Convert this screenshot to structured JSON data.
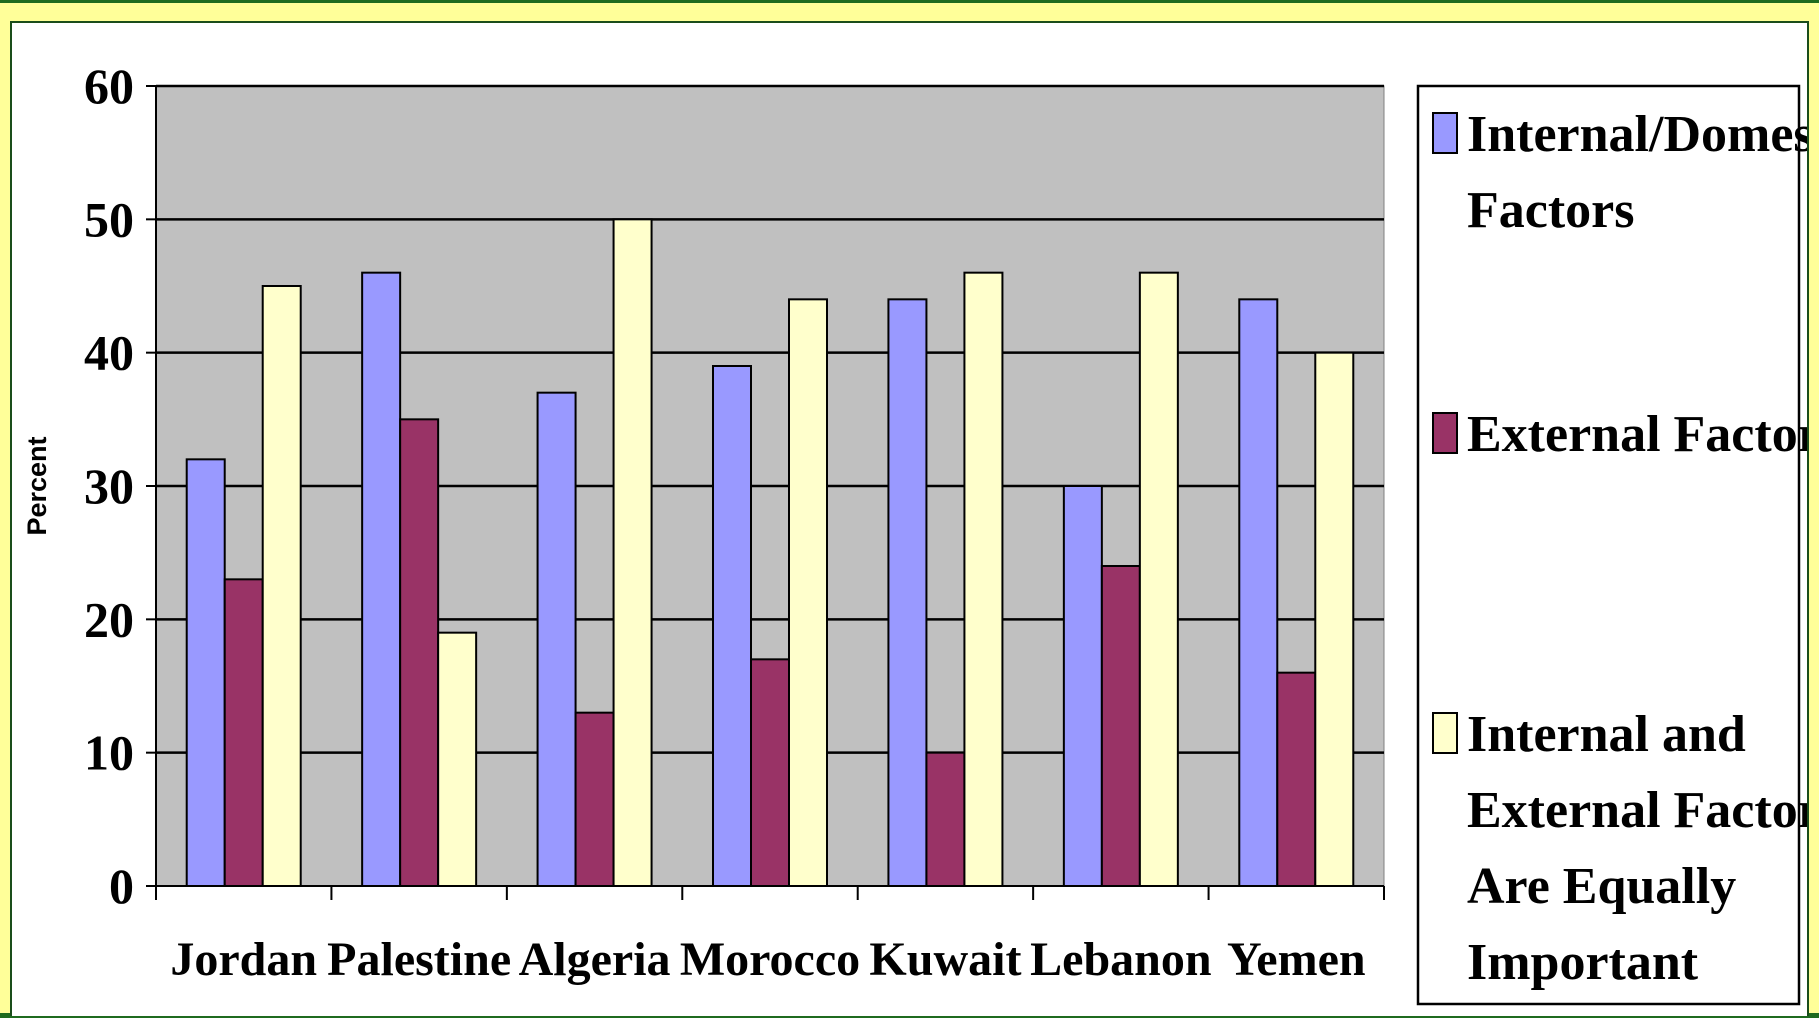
{
  "chart_data": {
    "type": "bar",
    "categories": [
      "Jordan",
      "Palestine",
      "Algeria",
      "Morocco",
      "Kuwait",
      "Lebanon",
      "Yemen"
    ],
    "series": [
      {
        "name": "Internal/Domestic Factors",
        "color": "#9999ff",
        "values": [
          32,
          46,
          37,
          39,
          44,
          30,
          44
        ]
      },
      {
        "name": "External Factors",
        "color": "#993366",
        "values": [
          23,
          35,
          13,
          17,
          10,
          24,
          16
        ]
      },
      {
        "name": "Internal and External Factors Are Equally Important",
        "color": "#ffffcc",
        "values": [
          45,
          19,
          50,
          44,
          46,
          46,
          40
        ]
      }
    ],
    "ylabel": "Percent",
    "xlabel": "",
    "ylim": [
      0,
      60
    ],
    "yticks": [
      0,
      10,
      20,
      30,
      40,
      50,
      60
    ],
    "grid": true,
    "plot_background": "#c0c0c0",
    "legend_position": "right"
  },
  "legend_lines": [
    [
      "Internal/Domestic",
      "Factors"
    ],
    [
      "External Factors"
    ],
    [
      "Internal and",
      "External Factors",
      "Are Equally",
      "Important"
    ]
  ],
  "colors": {
    "frame": "#ffff99",
    "frame_border": "#1f6b1f",
    "grid": "#000000"
  }
}
